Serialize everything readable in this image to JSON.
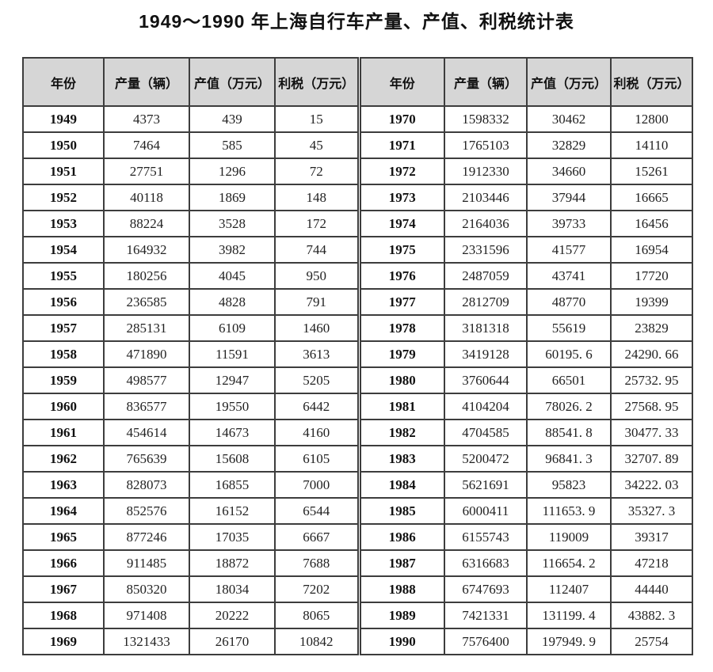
{
  "title": "1949～1990 年上海自行车产量、产值、利税统计表",
  "colors": {
    "header_background": "#d6d6d6",
    "border": "#3d3d3d",
    "text": "#222222"
  },
  "table": {
    "headers": [
      "年份",
      "产量（辆）",
      "产值（万元）",
      "利税（万元）",
      "年份",
      "产量（辆）",
      "产值（万元）",
      "利税（万元）"
    ],
    "rows": [
      [
        "1949",
        "4373",
        "439",
        "15",
        "1970",
        "1598332",
        "30462",
        "12800"
      ],
      [
        "1950",
        "7464",
        "585",
        "45",
        "1971",
        "1765103",
        "32829",
        "14110"
      ],
      [
        "1951",
        "27751",
        "1296",
        "72",
        "1972",
        "1912330",
        "34660",
        "15261"
      ],
      [
        "1952",
        "40118",
        "1869",
        "148",
        "1973",
        "2103446",
        "37944",
        "16665"
      ],
      [
        "1953",
        "88224",
        "3528",
        "172",
        "1974",
        "2164036",
        "39733",
        "16456"
      ],
      [
        "1954",
        "164932",
        "3982",
        "744",
        "1975",
        "2331596",
        "41577",
        "16954"
      ],
      [
        "1955",
        "180256",
        "4045",
        "950",
        "1976",
        "2487059",
        "43741",
        "17720"
      ],
      [
        "1956",
        "236585",
        "4828",
        "791",
        "1977",
        "2812709",
        "48770",
        "19399"
      ],
      [
        "1957",
        "285131",
        "6109",
        "1460",
        "1978",
        "3181318",
        "55619",
        "23829"
      ],
      [
        "1958",
        "471890",
        "11591",
        "3613",
        "1979",
        "3419128",
        "60195. 6",
        "24290. 66"
      ],
      [
        "1959",
        "498577",
        "12947",
        "5205",
        "1980",
        "3760644",
        "66501",
        "25732. 95"
      ],
      [
        "1960",
        "836577",
        "19550",
        "6442",
        "1981",
        "4104204",
        "78026. 2",
        "27568. 95"
      ],
      [
        "1961",
        "454614",
        "14673",
        "4160",
        "1982",
        "4704585",
        "88541. 8",
        "30477. 33"
      ],
      [
        "1962",
        "765639",
        "15608",
        "6105",
        "1983",
        "5200472",
        "96841. 3",
        "32707. 89"
      ],
      [
        "1963",
        "828073",
        "16855",
        "7000",
        "1984",
        "5621691",
        "95823",
        "34222. 03"
      ],
      [
        "1964",
        "852576",
        "16152",
        "6544",
        "1985",
        "6000411",
        "111653. 9",
        "35327. 3"
      ],
      [
        "1965",
        "877246",
        "17035",
        "6667",
        "1986",
        "6155743",
        "119009",
        "39317"
      ],
      [
        "1966",
        "911485",
        "18872",
        "7688",
        "1987",
        "6316683",
        "116654. 2",
        "47218"
      ],
      [
        "1967",
        "850320",
        "18034",
        "7202",
        "1988",
        "6747693",
        "112407",
        "44440"
      ],
      [
        "1968",
        "971408",
        "20222",
        "8065",
        "1989",
        "7421331",
        "131199. 4",
        "43882. 3"
      ],
      [
        "1969",
        "1321433",
        "26170",
        "10842",
        "1990",
        "7576400",
        "197949. 9",
        "25754"
      ]
    ]
  }
}
